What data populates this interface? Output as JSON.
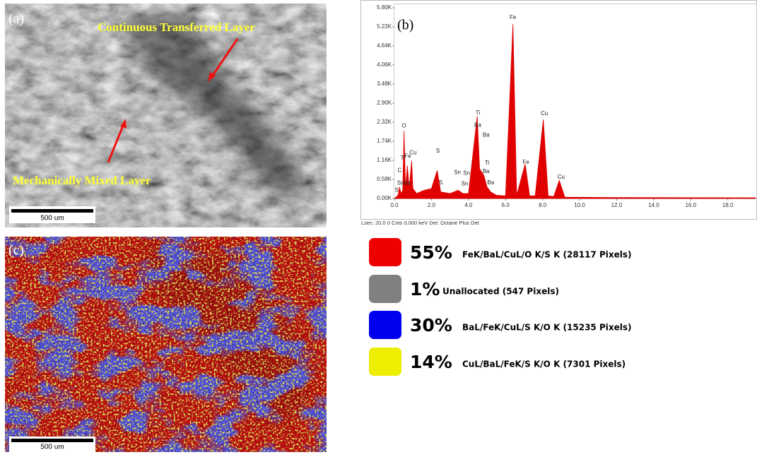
{
  "panels": {
    "a": {
      "label": "(a)",
      "annotations": [
        "Continuous Transferred Layer",
        "Mechanically Mixed Layer"
      ],
      "scale_bar": "500 um"
    },
    "b": {
      "label": "(b)",
      "footer": "Lsec: 20.0 0 Cnts 0.000 keV Det: Octane Plus Det"
    },
    "c": {
      "label": "(c)",
      "scale_bar": "500 um"
    }
  },
  "chart_data": {
    "type": "area",
    "color": "#e00000",
    "x": [
      0,
      0.2,
      0.28,
      0.35,
      0.45,
      0.52,
      0.6,
      0.7,
      0.8,
      0.93,
      1.0,
      1.2,
      1.6,
      2.0,
      2.31,
      2.5,
      3.0,
      3.44,
      3.7,
      4.0,
      4.47,
      4.6,
      4.83,
      5.0,
      5.2,
      5.5,
      6.0,
      6.4,
      6.6,
      7.06,
      7.3,
      7.6,
      8.04,
      8.3,
      8.6,
      8.9,
      9.2,
      12,
      19.5
    ],
    "values": [
      0,
      100,
      350,
      150,
      250,
      2050,
      300,
      1000,
      300,
      1150,
      300,
      150,
      250,
      300,
      850,
      200,
      150,
      250,
      150,
      150,
      2500,
      900,
      700,
      350,
      200,
      100,
      80,
      5300,
      100,
      1050,
      80,
      80,
      2400,
      80,
      60,
      550,
      40,
      30,
      20
    ],
    "peak_labels": [
      "Fe",
      "O",
      "Ti",
      "Ba",
      "Ba",
      "Ti",
      "Fe",
      "Cu",
      "C",
      "Sn",
      "Ba",
      "S",
      "S",
      "S",
      "Sn",
      "Sn",
      "Sn",
      "Ti",
      "Ba",
      "Ba",
      "Fe",
      "Cu",
      "Cu"
    ],
    "xlim": [
      0,
      19.5
    ],
    "ylim": [
      0,
      5800
    ],
    "xticks": [
      {
        "value": 0,
        "label": "0.0"
      },
      {
        "value": 2,
        "label": "2.0"
      },
      {
        "value": 4,
        "label": "4.0"
      },
      {
        "value": 6,
        "label": "6.0"
      },
      {
        "value": 8,
        "label": "8.0"
      },
      {
        "value": 10,
        "label": "10.0"
      },
      {
        "value": 12,
        "label": "12.0"
      },
      {
        "value": 14,
        "label": "14.0"
      },
      {
        "value": 16,
        "label": "16.0"
      },
      {
        "value": 18,
        "label": "18.0"
      }
    ],
    "yticks": [
      {
        "value": 0,
        "label": "0.00K"
      },
      {
        "value": 580,
        "label": "0.58K"
      },
      {
        "value": 1160,
        "label": "1.16K"
      },
      {
        "value": 1740,
        "label": "1.74K"
      },
      {
        "value": 2320,
        "label": "2.32K"
      },
      {
        "value": 2900,
        "label": "2.90K"
      },
      {
        "value": 3480,
        "label": "3.48K"
      },
      {
        "value": 4060,
        "label": "4.06K"
      },
      {
        "value": 4640,
        "label": "4.64K"
      },
      {
        "value": 5220,
        "label": "5.22K"
      },
      {
        "value": 5800,
        "label": "5.80K"
      }
    ]
  },
  "legend": [
    {
      "color": "#ee0000",
      "percent": "55%",
      "description": "FeK/BaL/CuL/O K/S K (28117 Pixels)"
    },
    {
      "color": "#808080",
      "percent": "1%",
      "description": "Unallocated (547 Pixels)"
    },
    {
      "color": "#0000ee",
      "percent": "30%",
      "description": "BaL/FeK/CuL/S K/O K (15235 Pixels)"
    },
    {
      "color": "#eeee00",
      "percent": "14%",
      "description": "CuL/BaL/FeK/S K/O K (7301 Pixels)"
    }
  ]
}
